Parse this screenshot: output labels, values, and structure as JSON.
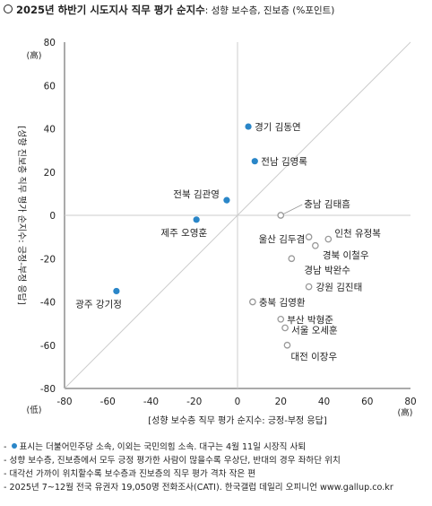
{
  "title": {
    "main": "2025년 하반기 시도지사 직무 평가 순지수",
    "sub": ": 성향 보수층, 진보층 (%포인트)"
  },
  "chart_data": {
    "type": "scatter",
    "xlabel": "[성향 보수층 직무 평가 순지수: 긍정-부정 응답]",
    "ylabel": "[성향 진보층 직무 평가 순지수: 긍정-부정 응답]",
    "xlim": [
      -80,
      80
    ],
    "ylim": [
      -80,
      80
    ],
    "xticks": [
      "-80",
      "-60",
      "-40",
      "-20",
      "0",
      "20",
      "40",
      "60",
      "80"
    ],
    "yticks": [
      "80",
      "60",
      "40",
      "20",
      "0",
      "-20",
      "-40",
      "-60",
      "-80"
    ],
    "y_high_label": "(高)",
    "x_low_label": "(低)",
    "x_high_label": "(高)",
    "reference_line": "y = x",
    "points": [
      {
        "label": "경기 김동연",
        "x": 5,
        "y": 41,
        "democratic": true
      },
      {
        "label": "전남 김영록",
        "x": 8,
        "y": 25,
        "democratic": true
      },
      {
        "label": "전북 김관영",
        "x": -5,
        "y": 7,
        "democratic": true
      },
      {
        "label": "제주 오영훈",
        "x": -19,
        "y": -2,
        "democratic": true
      },
      {
        "label": "광주 강기정",
        "x": -56,
        "y": -35,
        "democratic": true
      },
      {
        "label": "충남 김태흠",
        "x": 20,
        "y": 0,
        "democratic": false
      },
      {
        "label": "울산 김두겸",
        "x": 33,
        "y": -10,
        "democratic": false
      },
      {
        "label": "인천 유정복",
        "x": 42,
        "y": -11,
        "democratic": false
      },
      {
        "label": "경북 이철우",
        "x": 36,
        "y": -14,
        "democratic": false
      },
      {
        "label": "경남 박완수",
        "x": 25,
        "y": -20,
        "democratic": false
      },
      {
        "label": "강원 김진태",
        "x": 33,
        "y": -33,
        "democratic": false
      },
      {
        "label": "충북 김영환",
        "x": 7,
        "y": -40,
        "democratic": false
      },
      {
        "label": "부산 박형준",
        "x": 20,
        "y": -48,
        "democratic": false
      },
      {
        "label": "서울 오세훈",
        "x": 22,
        "y": -52,
        "democratic": false
      },
      {
        "label": "대전 이장우",
        "x": 23,
        "y": -60,
        "democratic": false
      }
    ],
    "colors": {
      "democratic": "#2a86c8",
      "other": "#999999",
      "axis": "#555555",
      "grid": "#cccccc"
    }
  },
  "notes": {
    "n1_text": "표시는 더불어민주당 소속, 이외는 국민의힘 소속. 대구는 4월 11일 시장직 사퇴",
    "n2": "성향 보수층, 진보층에서 모두 긍정 평가한 사람이 많을수록 우상단, 반대의 경우 좌하단 위치",
    "n3": "대각선 가까이 위치할수록 보수층과 진보층의 직무 평가 격차 작은 편",
    "n4": "2025년 7~12월 전국 유권자 19,050명 전화조사(CATI). 한국갤럽 데일리 오피니언 www.gallup.co.kr"
  }
}
